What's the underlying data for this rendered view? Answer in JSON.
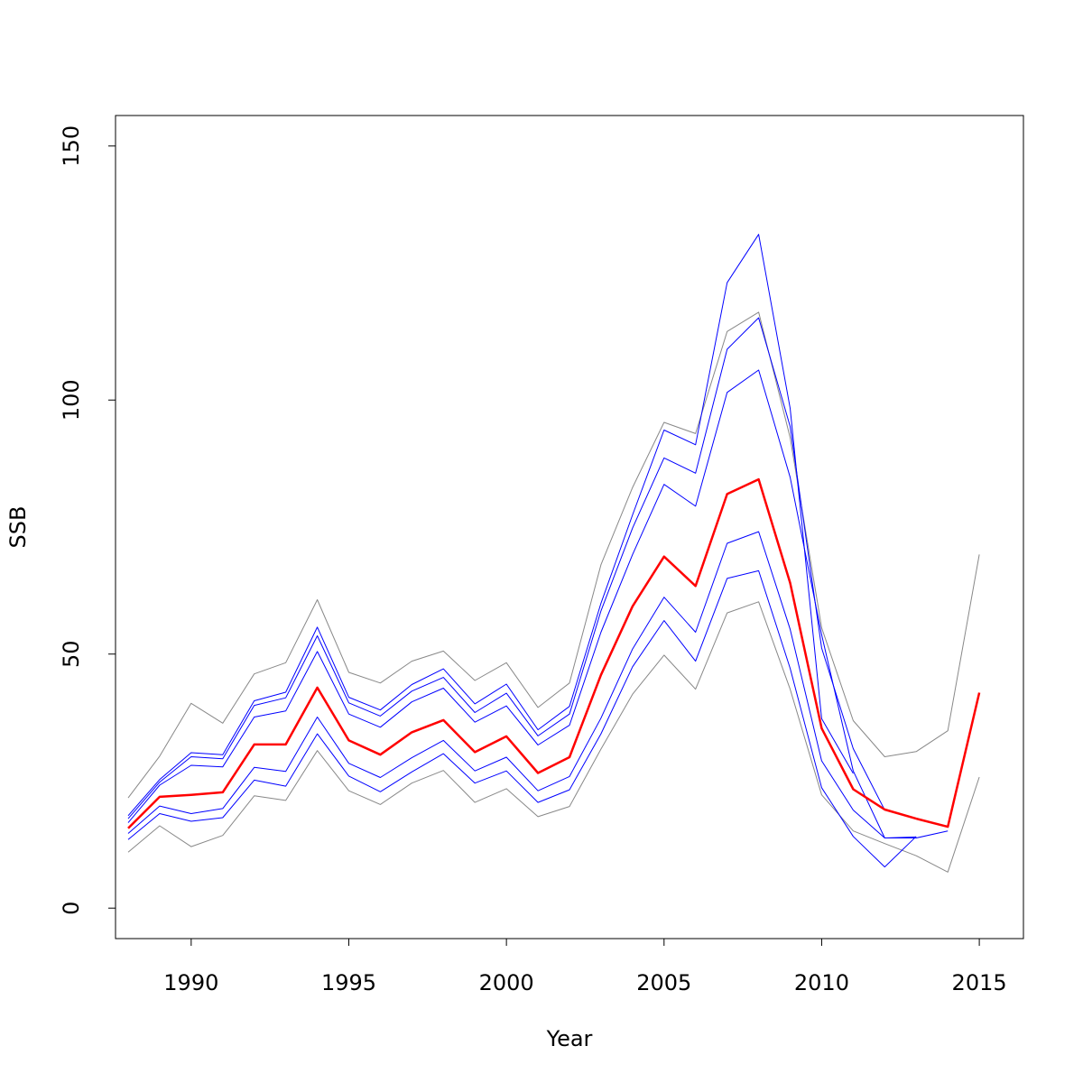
{
  "chart_data": {
    "type": "line",
    "xlabel": "Year",
    "ylabel": "SSB",
    "xlim": [
      1987.6,
      2016.4
    ],
    "ylim": [
      -6,
      156
    ],
    "x_ticks": [
      1990,
      1995,
      2000,
      2005,
      2010,
      2015
    ],
    "y_ticks": [
      0,
      50,
      100,
      150
    ],
    "grid": false,
    "legend": "none",
    "colors": {
      "main": "#ff0000",
      "inner_bands": "#0000ff",
      "outer_bands": "#888888"
    },
    "series": [
      {
        "role": "outer",
        "color": "#888888",
        "width": 1,
        "x": [
          1988,
          1989,
          1990,
          1991,
          1992,
          1993,
          1994,
          1995,
          1996,
          1997,
          1998,
          1999,
          2000,
          2001,
          2002,
          2003,
          2004,
          2005,
          2006,
          2007,
          2008,
          2009,
          2010,
          2011,
          2012,
          2013,
          2014,
          2015
        ],
        "values": [
          21.7,
          29.9,
          40.3,
          36.4,
          46.1,
          48.3,
          60.7,
          46.4,
          44.3,
          48.6,
          50.6,
          44.8,
          48.3,
          39.5,
          44.3,
          67.6,
          82.8,
          95.6,
          93.4,
          113.5,
          117.3,
          92.6,
          55.2,
          36.9,
          29.8,
          30.8,
          34.9,
          69.6
        ]
      },
      {
        "role": "outer",
        "color": "#888888",
        "width": 1,
        "x": [
          1988,
          1989,
          1990,
          1991,
          1992,
          1993,
          1994,
          1995,
          1996,
          1997,
          1998,
          1999,
          2000,
          2001,
          2002,
          2003,
          2004,
          2005,
          2006,
          2007,
          2008,
          2009,
          2010,
          2011,
          2012,
          2013,
          2014,
          2015
        ],
        "values": [
          11.0,
          16.2,
          12.1,
          14.3,
          22.1,
          21.2,
          31.0,
          23.1,
          20.4,
          24.6,
          27.1,
          20.8,
          23.5,
          18.0,
          20.0,
          31.3,
          42.1,
          49.8,
          43.1,
          58.1,
          60.3,
          43.1,
          22.3,
          15.2,
          12.7,
          10.3,
          7.1,
          25.8
        ]
      },
      {
        "role": "inner",
        "color": "#0000ff",
        "width": 1,
        "x": [
          1988,
          1989,
          1990,
          1991,
          1992,
          1993,
          1994,
          1995,
          1996,
          1997,
          1998,
          1999,
          2000,
          2001,
          2002,
          2003,
          2004,
          2005,
          2006,
          2007,
          2008,
          2009,
          2010,
          2011
        ],
        "values": [
          18.2,
          25.3,
          30.6,
          30.2,
          40.8,
          42.5,
          55.3,
          41.5,
          39.0,
          44.0,
          47.1,
          40.2,
          44.1,
          35.1,
          39.7,
          60.0,
          77.4,
          94.1,
          91.2,
          123.1,
          132.6,
          98.4,
          37.3,
          26.5
        ]
      },
      {
        "role": "inner",
        "color": "#0000ff",
        "width": 1,
        "x": [
          1988,
          1989,
          1990,
          1991,
          1992,
          1993,
          1994,
          1995,
          1996,
          1997,
          1998,
          1999,
          2000,
          2001,
          2002,
          2003,
          2004,
          2005,
          2006,
          2007,
          2008,
          2009,
          2010,
          2011,
          2012
        ],
        "values": [
          17.6,
          24.8,
          29.8,
          29.4,
          39.9,
          41.4,
          53.6,
          40.4,
          37.8,
          42.7,
          45.4,
          38.5,
          42.3,
          33.9,
          38.2,
          58.5,
          74.8,
          88.6,
          85.6,
          110.0,
          116.2,
          94.8,
          51.2,
          31.4,
          19.3
        ]
      },
      {
        "role": "inner",
        "color": "#0000ff",
        "width": 1,
        "x": [
          1988,
          1989,
          1990,
          1991,
          1992,
          1993,
          1994,
          1995,
          1996,
          1997,
          1998,
          1999,
          2000,
          2001,
          2002,
          2003,
          2004,
          2005,
          2006,
          2007,
          2008,
          2009,
          2010,
          2011,
          2012,
          2013,
          2014
        ],
        "values": [
          16.8,
          24.2,
          28.1,
          27.8,
          37.6,
          38.8,
          50.5,
          38.2,
          35.6,
          40.6,
          43.3,
          36.6,
          39.8,
          32.1,
          36.0,
          54.3,
          69.6,
          83.4,
          79.1,
          101.5,
          105.9,
          84.8,
          53.8,
          27.0,
          13.8,
          13.8,
          15.2
        ]
      },
      {
        "role": "inner",
        "color": "#0000ff",
        "width": 1,
        "x": [
          1988,
          1989,
          1990,
          1991,
          1992,
          1993,
          1994,
          1995,
          1996,
          1997,
          1998,
          1999,
          2000,
          2001,
          2002,
          2003,
          2004,
          2005,
          2006,
          2007,
          2008,
          2009,
          2010,
          2011,
          2012,
          2013
        ],
        "values": [
          14.7,
          20.1,
          18.6,
          19.6,
          27.7,
          26.9,
          37.6,
          28.5,
          25.7,
          29.6,
          33.0,
          27.0,
          29.7,
          23.1,
          25.9,
          37.4,
          51.0,
          61.2,
          54.3,
          71.8,
          74.1,
          54.9,
          29.0,
          19.3,
          13.8,
          14.0
        ]
      },
      {
        "role": "inner",
        "color": "#0000ff",
        "width": 1,
        "x": [
          1988,
          1989,
          1990,
          1991,
          1992,
          1993,
          1994,
          1995,
          1996,
          1997,
          1998,
          1999,
          2000,
          2001,
          2002,
          2003,
          2004,
          2005,
          2006,
          2007,
          2008,
          2009,
          2010,
          2011,
          2012,
          2013
        ],
        "values": [
          13.5,
          18.6,
          17.1,
          17.8,
          25.2,
          24.0,
          34.3,
          26.0,
          22.9,
          26.8,
          30.4,
          24.6,
          27.0,
          20.8,
          23.3,
          34.3,
          47.5,
          56.6,
          48.6,
          64.9,
          66.4,
          47.2,
          23.7,
          14.1,
          8.1,
          14.1
        ]
      },
      {
        "role": "main",
        "color": "#ff0000",
        "width": 2.5,
        "x": [
          1988,
          1989,
          1990,
          1991,
          1992,
          1993,
          1994,
          1995,
          1996,
          1997,
          1998,
          1999,
          2000,
          2001,
          2002,
          2003,
          2004,
          2005,
          2006,
          2007,
          2008,
          2009,
          2010,
          2011,
          2012,
          2013,
          2014,
          2015
        ],
        "values": [
          15.7,
          21.9,
          22.3,
          22.8,
          32.2,
          32.2,
          43.4,
          33.0,
          30.2,
          34.6,
          37.0,
          30.7,
          33.8,
          26.6,
          29.7,
          45.9,
          59.4,
          69.2,
          63.4,
          81.5,
          84.4,
          64.0,
          35.4,
          23.4,
          19.4,
          17.6,
          16.0,
          42.4
        ]
      }
    ]
  }
}
